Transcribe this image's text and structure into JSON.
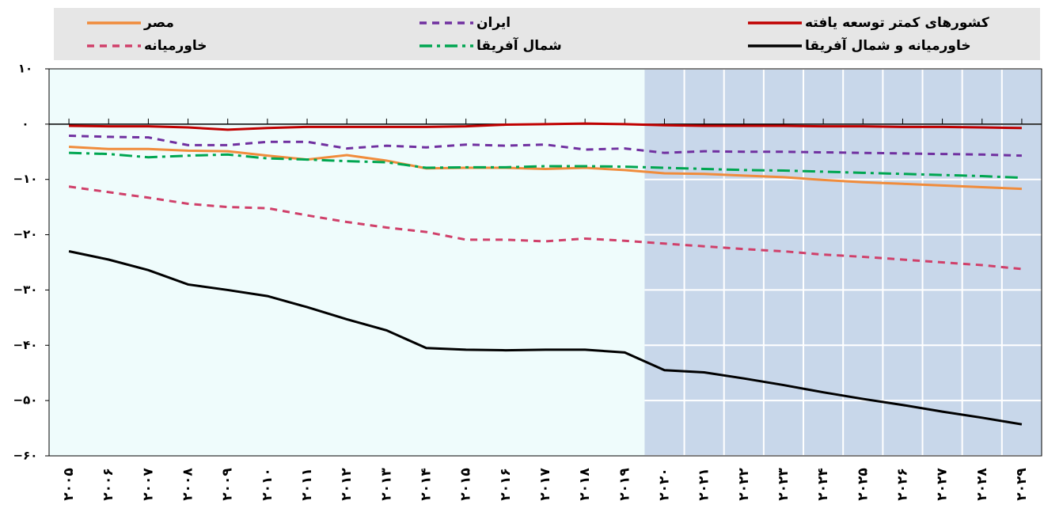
{
  "chart_data": {
    "type": "line",
    "categories": [
      "۲۰۰۵",
      "۲۰۰۶",
      "۲۰۰۷",
      "۲۰۰۸",
      "۲۰۰۹",
      "۲۰۱۰",
      "۲۰۱۱",
      "۲۰۱۲",
      "۲۰۱۳",
      "۲۰۱۴",
      "۲۰۱۵",
      "۲۰۱۶",
      "۲۰۱۷",
      "۲۰۱۸",
      "۲۰۱۹",
      "۲۰۲۰",
      "۲۰۲۱",
      "۲۰۲۲",
      "۲۰۲۳",
      "۲۰۲۴",
      "۲۰۲۵",
      "۲۰۲۶",
      "۲۰۲۷",
      "۲۰۲۸",
      "۲۰۲۹"
    ],
    "ylim": [
      -60,
      10
    ],
    "yticks": [
      {
        "value": 10,
        "label": "۱۰"
      },
      {
        "value": 0,
        "label": "۰"
      },
      {
        "value": -10,
        "label": "−۱۰"
      },
      {
        "value": -20,
        "label": "−۲۰"
      },
      {
        "value": -30,
        "label": "−۳۰"
      },
      {
        "value": -40,
        "label": "−۴۰"
      },
      {
        "value": -50,
        "label": "−۵۰"
      },
      {
        "value": -60,
        "label": "−۶۰"
      }
    ],
    "series": [
      {
        "name": "کشورهای کمتر توسعه یافته",
        "color": "#c00000",
        "dash": "solid",
        "values": [
          -0.3,
          -0.4,
          -0.4,
          -0.6,
          -1,
          -0.7,
          -0.5,
          -0.5,
          -0.5,
          -0.5,
          -0.4,
          -0.1,
          0,
          0.1,
          0,
          -0.2,
          -0.3,
          -0.3,
          -0.3,
          -0.4,
          -0.4,
          -0.5,
          -0.5,
          -0.6,
          -0.7
        ]
      },
      {
        "name": "ایران",
        "color": "#7030a0",
        "dash": "dashed",
        "values": [
          -2.1,
          -2.3,
          -2.4,
          -3.8,
          -3.8,
          -3.2,
          -3.2,
          -4.4,
          -3.9,
          -4.2,
          -3.7,
          -3.9,
          -3.7,
          -4.6,
          -4.4,
          -5.2,
          -4.9,
          -5,
          -5,
          -5.1,
          -5.2,
          -5.3,
          -5.4,
          -5.5,
          -5.7
        ]
      },
      {
        "name": "مصر",
        "color": "#f08c3c",
        "dash": "solid",
        "values": [
          -4.1,
          -4.5,
          -4.5,
          -4.8,
          -4.9,
          -5.7,
          -6.4,
          -5.6,
          -6.6,
          -8,
          -7.9,
          -7.9,
          -8.1,
          -7.9,
          -8.3,
          -8.9,
          -9,
          -9.3,
          -9.6,
          -10.1,
          -10.5,
          -10.8,
          -11.1,
          -11.4,
          -11.7
        ]
      },
      {
        "name": "خاورمیانه و شمال آفریقا",
        "color": "#000000",
        "dash": "solid",
        "values": [
          -23,
          -24.5,
          -26.4,
          -29,
          -30,
          -31.1,
          -33.1,
          -35.3,
          -37.3,
          -40.5,
          -40.8,
          -40.9,
          -40.8,
          -40.8,
          -41.3,
          -44.5,
          -44.9,
          -46,
          -47.2,
          -48.5,
          -49.7,
          -50.8,
          -52,
          -53.1,
          -54.3
        ]
      },
      {
        "name": "شمال آفریقا",
        "color": "#00a651",
        "dash": "dashdot",
        "values": [
          -5.2,
          -5.4,
          -6,
          -5.7,
          -5.5,
          -6.2,
          -6.4,
          -6.7,
          -6.9,
          -7.9,
          -7.8,
          -7.8,
          -7.6,
          -7.6,
          -7.7,
          -7.9,
          -8.1,
          -8.3,
          -8.4,
          -8.6,
          -8.8,
          -9,
          -9.2,
          -9.4,
          -9.7
        ]
      },
      {
        "name": "خاورمیانه",
        "color": "#d0406a",
        "dash": "dashed",
        "values": [
          -11.3,
          -12.3,
          -13.3,
          -14.4,
          -15,
          -15.2,
          -16.5,
          -17.7,
          -18.7,
          -19.5,
          -20.9,
          -20.9,
          -21.2,
          -20.7,
          -21.1,
          -21.6,
          -22.1,
          -22.6,
          -23,
          -23.6,
          -24,
          -24.5,
          -25,
          -25.5,
          -26.2
        ]
      }
    ]
  }
}
